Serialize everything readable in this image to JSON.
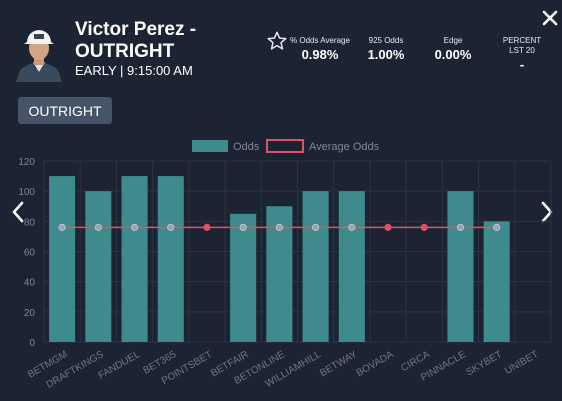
{
  "header": {
    "player_name": "Victor Perez -",
    "market": "OUTRIGHT",
    "session": "EARLY | 9:15:00 AM",
    "stats": [
      {
        "label": "% Odds Average",
        "value": "0.98%"
      },
      {
        "label": "925 Odds",
        "value": "1.00%"
      },
      {
        "label": "Edge",
        "value": "0.00%"
      },
      {
        "label": "PERCENT LST 20",
        "value": "-"
      }
    ]
  },
  "market_button_label": "OUTRIGHT",
  "colors": {
    "background": "#1c2434",
    "bar": "#3f8a8c",
    "average_line": "#e0506a",
    "button": "#455468"
  },
  "icons": [
    "avatar",
    "star-icon",
    "close-icon",
    "chevron-left-icon",
    "chevron-right-icon"
  ],
  "chart_data": {
    "type": "bar",
    "categories": [
      "BETMGM",
      "DRAFTKINGS",
      "FANDUEL",
      "BET365",
      "POINTSBET",
      "BETFAIR",
      "BETONLINE",
      "WILLIAMHILL",
      "BETWAY",
      "BOVADA",
      "CIRCA",
      "PINNACLE",
      "SKYBET",
      "UNIBET"
    ],
    "series": [
      {
        "name": "Odds",
        "type": "bar",
        "values": [
          110,
          100,
          110,
          110,
          null,
          85,
          90,
          100,
          100,
          null,
          null,
          100,
          80,
          null
        ]
      },
      {
        "name": "Average Odds",
        "type": "line",
        "values": [
          76,
          76,
          76,
          76,
          76,
          76,
          76,
          76,
          76,
          76,
          76,
          76,
          76,
          null
        ]
      }
    ],
    "yticks": [
      0,
      20,
      40,
      60,
      80,
      100,
      120
    ],
    "ylim": [
      0,
      120
    ],
    "grid": true,
    "legend": "top-center"
  }
}
